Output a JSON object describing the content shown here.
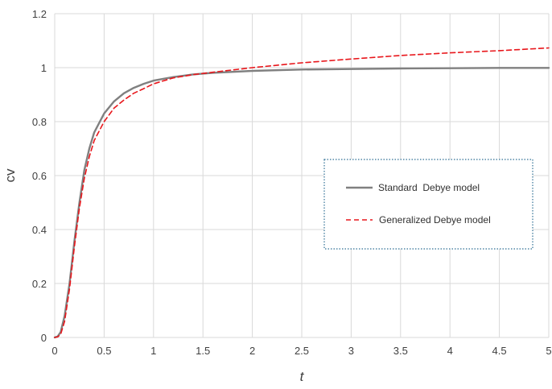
{
  "chart_data": {
    "type": "line",
    "xlabel": "t",
    "ylabel": "cv",
    "xlim": [
      0,
      5
    ],
    "ylim": [
      0,
      1.2
    ],
    "x_ticks": [
      "0",
      "0.5",
      "1",
      "1.5",
      "2",
      "2.5",
      "3",
      "3.5",
      "4",
      "4.5",
      "5"
    ],
    "y_ticks": [
      "0",
      "0.2",
      "0.4",
      "0.6",
      "0.8",
      "1",
      "1.2"
    ],
    "grid": true,
    "legend_position": "right",
    "series": [
      {
        "name": "Standard  Debye model",
        "color": "#808080",
        "style": "solid",
        "points": [
          [
            0,
            0
          ],
          [
            0.03,
            0.004
          ],
          [
            0.06,
            0.02
          ],
          [
            0.1,
            0.08
          ],
          [
            0.15,
            0.2
          ],
          [
            0.2,
            0.36
          ],
          [
            0.25,
            0.5
          ],
          [
            0.3,
            0.62
          ],
          [
            0.35,
            0.7
          ],
          [
            0.4,
            0.76
          ],
          [
            0.5,
            0.83
          ],
          [
            0.6,
            0.875
          ],
          [
            0.7,
            0.905
          ],
          [
            0.8,
            0.925
          ],
          [
            0.9,
            0.94
          ],
          [
            1.0,
            0.952
          ],
          [
            1.2,
            0.965
          ],
          [
            1.4,
            0.975
          ],
          [
            1.6,
            0.981
          ],
          [
            2.0,
            0.988
          ],
          [
            2.5,
            0.993
          ],
          [
            3.0,
            0.995
          ],
          [
            3.5,
            0.997
          ],
          [
            4.0,
            0.998
          ],
          [
            4.5,
            0.999
          ],
          [
            5.0,
            0.999
          ]
        ]
      },
      {
        "name": "Generalized Debye model",
        "color": "#e8161b",
        "style": "dashed",
        "points": [
          [
            0,
            0
          ],
          [
            0.03,
            0.002
          ],
          [
            0.06,
            0.012
          ],
          [
            0.1,
            0.06
          ],
          [
            0.15,
            0.18
          ],
          [
            0.2,
            0.34
          ],
          [
            0.25,
            0.48
          ],
          [
            0.3,
            0.59
          ],
          [
            0.35,
            0.67
          ],
          [
            0.4,
            0.73
          ],
          [
            0.5,
            0.8
          ],
          [
            0.6,
            0.85
          ],
          [
            0.7,
            0.88
          ],
          [
            0.8,
            0.905
          ],
          [
            0.9,
            0.922
          ],
          [
            1.0,
            0.94
          ],
          [
            1.2,
            0.962
          ],
          [
            1.4,
            0.974
          ],
          [
            1.6,
            0.983
          ],
          [
            2.0,
            1.0
          ],
          [
            2.5,
            1.018
          ],
          [
            3.0,
            1.032
          ],
          [
            3.5,
            1.045
          ],
          [
            4.0,
            1.055
          ],
          [
            4.5,
            1.063
          ],
          [
            5.0,
            1.073
          ]
        ]
      }
    ]
  }
}
